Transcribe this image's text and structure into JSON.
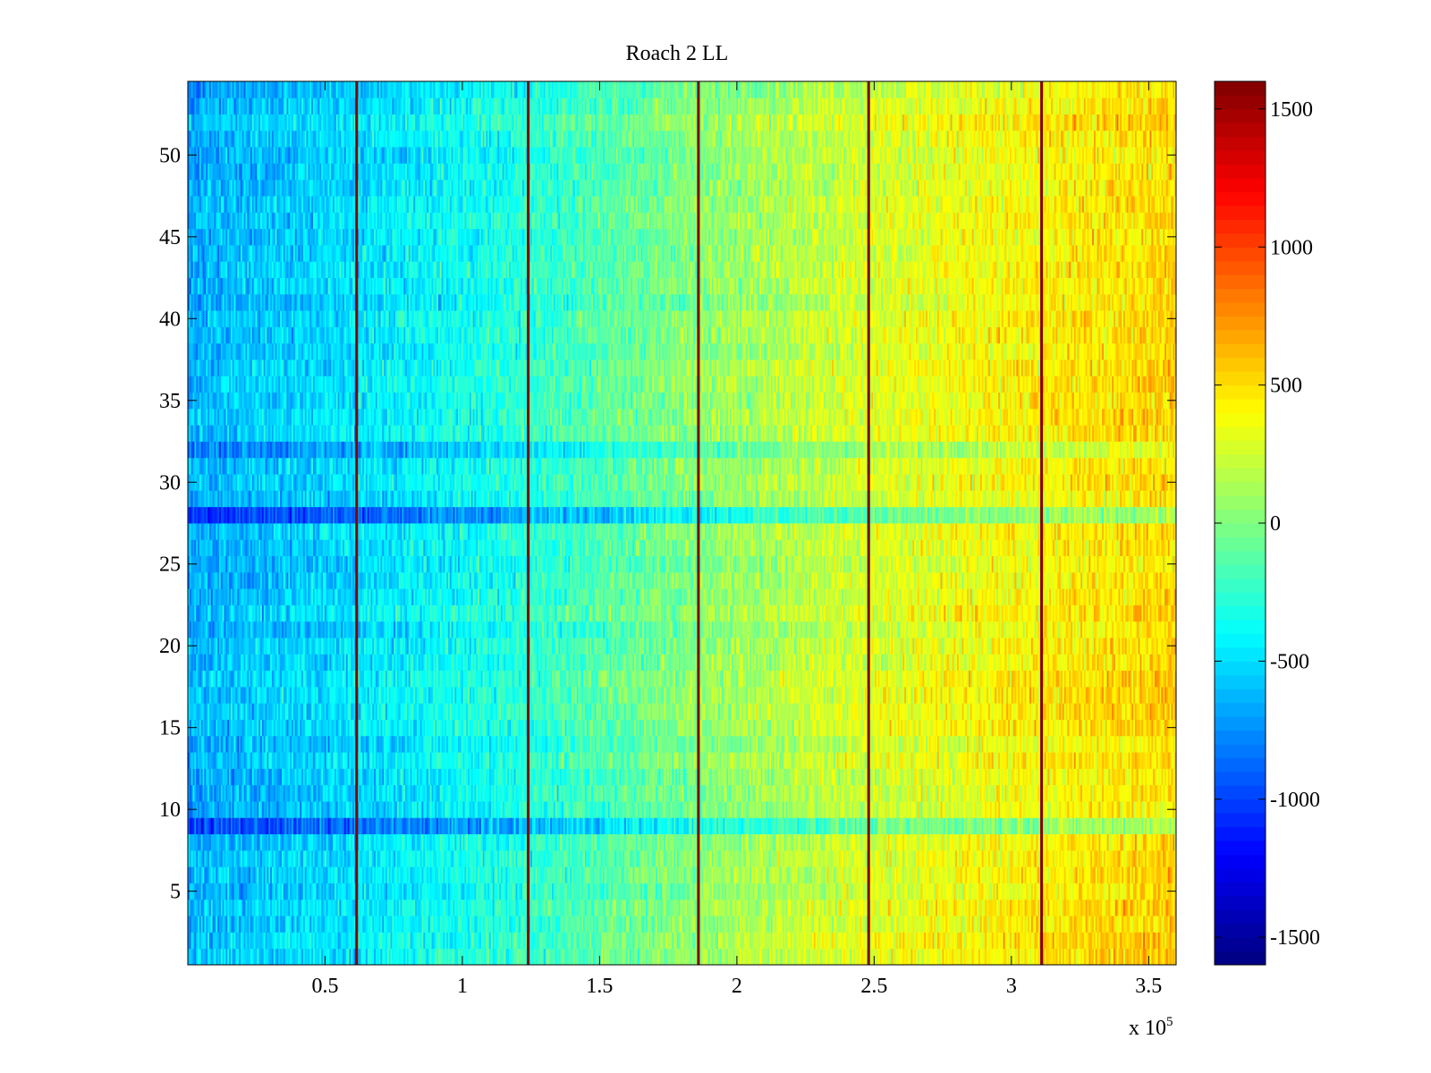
{
  "chart_data": {
    "type": "heatmap",
    "title": "Roach 2 LL",
    "xlabel": "",
    "ylabel": "",
    "x_exponent_label": {
      "prefix": "x 10",
      "exponent": "5"
    },
    "xlim": [
      0,
      360000
    ],
    "ylim": [
      0.5,
      54.5
    ],
    "n_rows": 54,
    "xticks": [
      {
        "value": 0.5,
        "label": "0.5"
      },
      {
        "value": 1,
        "label": "1"
      },
      {
        "value": 1.5,
        "label": "1.5"
      },
      {
        "value": 2,
        "label": "2"
      },
      {
        "value": 2.5,
        "label": "2.5"
      },
      {
        "value": 3,
        "label": "3"
      },
      {
        "value": 3.5,
        "label": "3.5"
      }
    ],
    "yticks": [
      {
        "value": 5,
        "label": "5"
      },
      {
        "value": 10,
        "label": "10"
      },
      {
        "value": 15,
        "label": "15"
      },
      {
        "value": 20,
        "label": "20"
      },
      {
        "value": 25,
        "label": "25"
      },
      {
        "value": 30,
        "label": "30"
      },
      {
        "value": 35,
        "label": "35"
      },
      {
        "value": 40,
        "label": "40"
      },
      {
        "value": 45,
        "label": "45"
      },
      {
        "value": 50,
        "label": "50"
      }
    ],
    "colorbar": {
      "colormap": "jet",
      "clim": [
        -1600,
        1600
      ],
      "ticks": [
        {
          "value": -1500,
          "label": "-1500"
        },
        {
          "value": -1000,
          "label": "-1000"
        },
        {
          "value": -500,
          "label": "-500"
        },
        {
          "value": 0,
          "label": "0"
        },
        {
          "value": 500,
          "label": "500"
        },
        {
          "value": 1000,
          "label": "1000"
        },
        {
          "value": 1500,
          "label": "1500"
        }
      ]
    },
    "trend_x": [
      0,
      60000,
      120000,
      180000,
      240000,
      300000,
      360000
    ],
    "trend_values": [
      -650,
      -500,
      -300,
      0,
      250,
      400,
      520
    ],
    "vertical_lines_x": [
      61500,
      124000,
      186000,
      248000,
      311000
    ],
    "vertical_line_value": 1600,
    "anomalous_rows": [
      {
        "row": 9,
        "offset": -350
      },
      {
        "row": 28,
        "offset": -380
      },
      {
        "row": 32,
        "offset": -200
      },
      {
        "row": 18,
        "offset": 80
      },
      {
        "row": 16,
        "offset": 100
      },
      {
        "row": 2,
        "offset": 100
      }
    ],
    "n_columns": 600
  }
}
